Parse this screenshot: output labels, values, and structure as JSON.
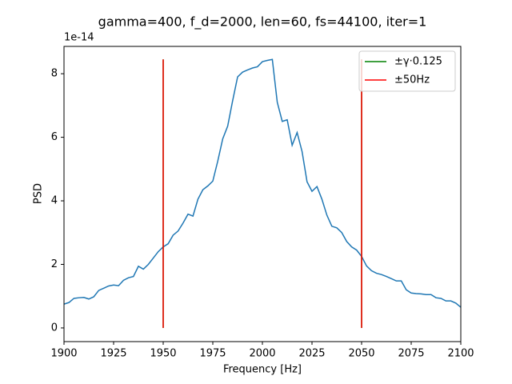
{
  "chart_data": {
    "type": "line",
    "title": "gamma=400, f_d=2000, len=60, fs=44100, iter=1",
    "xlabel": "Frequency [Hz]",
    "ylabel": "PSD",
    "y_offset_label": "1e-14",
    "xlim": [
      1900,
      2100
    ],
    "ylim": [
      -0.43,
      8.86
    ],
    "xticks": [
      1900,
      1925,
      1950,
      1975,
      2000,
      2025,
      2050,
      2075,
      2100
    ],
    "yticks": [
      0,
      2,
      4,
      6,
      8
    ],
    "legend_position": "upper right",
    "series": [
      {
        "color": "#1f77b4",
        "x": [
          1900,
          1902.5,
          1905,
          1907.5,
          1910,
          1912.5,
          1915,
          1917.5,
          1920,
          1922.5,
          1925,
          1927.5,
          1930,
          1932.5,
          1935,
          1937.5,
          1940,
          1942.5,
          1945,
          1947.5,
          1950,
          1952.5,
          1955,
          1957.5,
          1960,
          1962.5,
          1965,
          1967.5,
          1970,
          1972.5,
          1975,
          1977.5,
          1980,
          1982.5,
          1985,
          1987.5,
          1990,
          1992.5,
          1995,
          1997.5,
          2000,
          2002.5,
          2005,
          2007.5,
          2010,
          2012.5,
          2015,
          2017.5,
          2020,
          2022.5,
          2025,
          2027.5,
          2030,
          2032.5,
          2035,
          2037.5,
          2040,
          2042.5,
          2045,
          2047.5,
          2050,
          2052.5,
          2055,
          2057.5,
          2060,
          2062.5,
          2065,
          2067.5,
          2070,
          2072.5,
          2075,
          2077.5,
          2080,
          2082.5,
          2085,
          2087.5,
          2090,
          2092.5,
          2095,
          2097.5,
          2100
        ],
        "values": [
          0.75,
          0.8,
          0.93,
          0.95,
          0.96,
          0.91,
          0.98,
          1.18,
          1.25,
          1.32,
          1.35,
          1.33,
          1.5,
          1.58,
          1.62,
          1.94,
          1.85,
          2.0,
          2.2,
          2.4,
          2.55,
          2.65,
          2.92,
          3.05,
          3.3,
          3.58,
          3.52,
          4.05,
          4.35,
          4.47,
          4.62,
          5.25,
          5.95,
          6.35,
          7.15,
          7.9,
          8.05,
          8.12,
          8.18,
          8.22,
          8.38,
          8.42,
          8.45,
          7.1,
          6.5,
          6.55,
          5.75,
          6.15,
          5.55,
          4.6,
          4.3,
          4.45,
          4.05,
          3.55,
          3.2,
          3.15,
          3.0,
          2.72,
          2.55,
          2.45,
          2.25,
          1.95,
          1.8,
          1.72,
          1.68,
          1.62,
          1.55,
          1.48,
          1.48,
          1.2,
          1.1,
          1.08,
          1.07,
          1.05,
          1.05,
          0.95,
          0.93,
          0.85,
          0.85,
          0.78,
          0.65
        ]
      }
    ],
    "vlines": [
      {
        "name": "±γ·0.125",
        "color": "#008000",
        "x": [
          1950,
          2050
        ],
        "ymin": 0,
        "ymax": 8.45
      },
      {
        "name": "±50Hz",
        "color": "#ff0000",
        "x": [
          1950,
          2050
        ],
        "ymin": 0,
        "ymax": 8.45
      }
    ]
  }
}
